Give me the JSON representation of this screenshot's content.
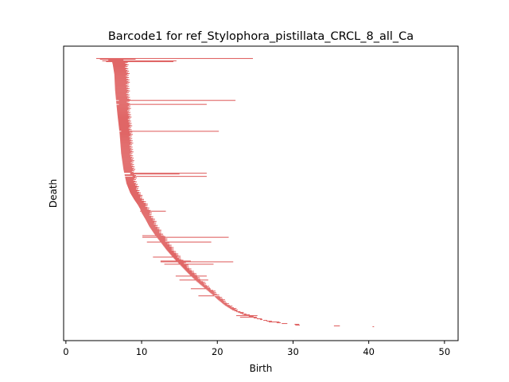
{
  "chart_data": {
    "type": "bar",
    "orientation": "horizontal",
    "title": "Barcode1 for ref_Stylophora_pistillata_CRCL_8_all_Ca",
    "xlabel": "Birth",
    "ylabel": "Death",
    "xlim": [
      -0.3,
      51.8
    ],
    "xticks": [
      0,
      10,
      20,
      30,
      40,
      50
    ],
    "yticks_shown": false,
    "grid": false,
    "legend": "none",
    "bar_color": "#e06666",
    "num_bars": 340,
    "main_curve": [
      [
        0,
        4.5
      ],
      [
        2,
        5.6
      ],
      [
        4,
        6.1
      ],
      [
        8,
        6.2
      ],
      [
        20,
        6.4
      ],
      [
        40,
        6.5
      ],
      [
        70,
        6.8
      ],
      [
        95,
        7.1
      ],
      [
        120,
        7.3
      ],
      [
        140,
        7.6
      ],
      [
        158,
        8.0
      ],
      [
        170,
        8.5
      ],
      [
        178,
        9.0
      ],
      [
        185,
        9.5
      ],
      [
        190,
        9.8
      ],
      [
        195,
        10.0
      ],
      [
        203,
        10.5
      ],
      [
        212,
        11.0
      ],
      [
        222,
        11.7
      ],
      [
        232,
        12.5
      ],
      [
        242,
        13.3
      ],
      [
        252,
        14.2
      ],
      [
        262,
        15.2
      ],
      [
        272,
        16.2
      ],
      [
        282,
        17.3
      ],
      [
        290,
        18.3
      ],
      [
        298,
        19.3
      ],
      [
        305,
        20.1
      ],
      [
        312,
        21.0
      ],
      [
        318,
        22.0
      ],
      [
        324,
        23.5
      ],
      [
        328,
        24.8
      ],
      [
        332,
        26.5
      ],
      [
        335,
        28.5
      ],
      [
        337,
        30.3
      ],
      [
        339,
        40.5
      ]
    ],
    "bar_width_range": [
      0.4,
      2.3
    ],
    "long_bars": [
      {
        "index": 0,
        "start": 4.0,
        "end": 24.7
      },
      {
        "index": 1,
        "start": 4.5,
        "end": 9.2
      },
      {
        "index": 3,
        "start": 4.8,
        "end": 14.6
      },
      {
        "index": 4,
        "start": 5.3,
        "end": 14.2
      },
      {
        "index": 53,
        "start": 7.0,
        "end": 22.4
      },
      {
        "index": 58,
        "start": 7.0,
        "end": 18.6
      },
      {
        "index": 92,
        "start": 7.3,
        "end": 20.2
      },
      {
        "index": 145,
        "start": 8.5,
        "end": 18.6
      },
      {
        "index": 146,
        "start": 8.5,
        "end": 15.0
      },
      {
        "index": 149,
        "start": 8.8,
        "end": 18.6
      },
      {
        "index": 193,
        "start": 9.8,
        "end": 13.2
      },
      {
        "index": 224,
        "start": 10.1,
        "end": 12.9
      },
      {
        "index": 226,
        "start": 10.1,
        "end": 21.5
      },
      {
        "index": 232,
        "start": 10.7,
        "end": 19.2
      },
      {
        "index": 251,
        "start": 11.5,
        "end": 14.7
      },
      {
        "index": 256,
        "start": 12.5,
        "end": 16.5
      },
      {
        "index": 257,
        "start": 12.5,
        "end": 22.1
      },
      {
        "index": 260,
        "start": 13.0,
        "end": 19.5
      },
      {
        "index": 275,
        "start": 14.5,
        "end": 18.6
      },
      {
        "index": 280,
        "start": 15.0,
        "end": 18.8
      },
      {
        "index": 291,
        "start": 16.5,
        "end": 19.1
      },
      {
        "index": 300,
        "start": 17.5,
        "end": 19.6
      },
      {
        "index": 325,
        "start": 22.5,
        "end": 25.3
      },
      {
        "index": 327,
        "start": 23.0,
        "end": 25.2
      },
      {
        "index": 333,
        "start": 26.8,
        "end": 28.2
      },
      {
        "index": 336,
        "start": 30.2,
        "end": 30.8
      },
      {
        "index": 339,
        "start": 40.5,
        "end": 40.7
      }
    ]
  }
}
